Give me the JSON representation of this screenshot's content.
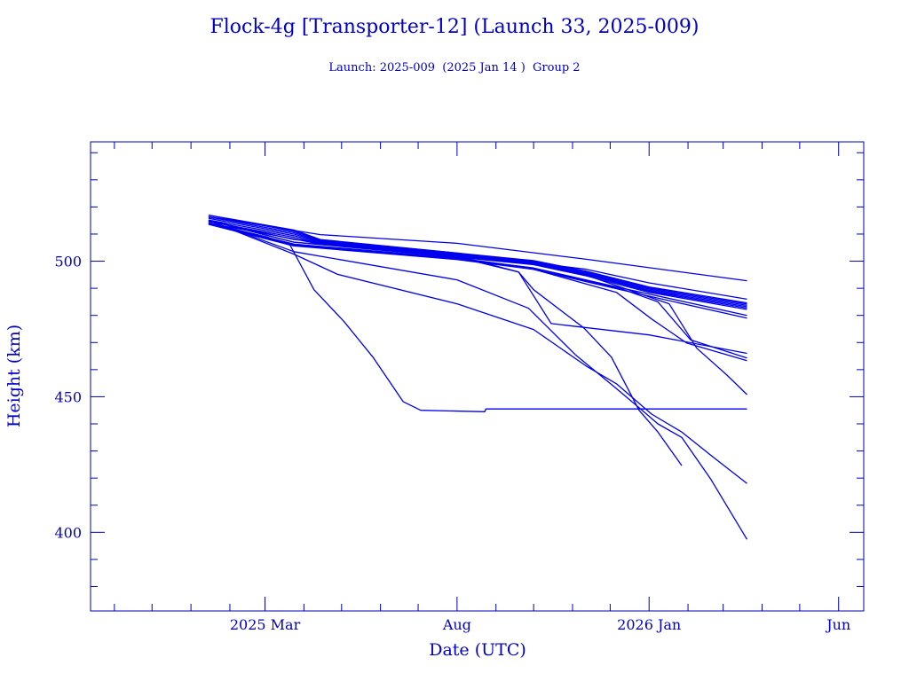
{
  "chart_data": {
    "type": "line",
    "title": "Flock-4g [Transporter-12] (Launch 33, 2025-009)",
    "subtitle": "Launch: 2025-009  (2025 Jan 14 )  Group 2",
    "xlabel": "Date (UTC)",
    "ylabel": "Height (km)",
    "xlim": [
      "2024-10-13",
      "2026-06-21"
    ],
    "ylim": [
      371,
      544
    ],
    "x_ticks": [
      {
        "date": "2025-03-01",
        "label": "2025 Mar"
      },
      {
        "date": "2025-08-01",
        "label": "Aug"
      },
      {
        "date": "2026-01-01",
        "label": "2026 Jan"
      },
      {
        "date": "2026-06-01",
        "label": "Jun"
      }
    ],
    "x_minor_ticks": "monthly",
    "y_ticks": [
      {
        "value": 400,
        "label": "400"
      },
      {
        "value": 450,
        "label": "450"
      },
      {
        "value": 500,
        "label": "500"
      }
    ],
    "y_minor_step": 10,
    "grid": false,
    "line_color": "#0000ee",
    "text_color": "#0000c8",
    "series": [
      {
        "points": [
          [
            "2025-01-15",
            516.4
          ],
          [
            "2025-04-14",
            509.8
          ],
          [
            "2025-08-01",
            506.6
          ],
          [
            "2025-11-12",
            500.7
          ],
          [
            "2026-03-20",
            492.8
          ]
        ]
      },
      {
        "points": [
          [
            "2025-01-15",
            517
          ],
          [
            "2025-03-24",
            511.5
          ],
          [
            "2025-04-14",
            508
          ],
          [
            "2025-08-01",
            503
          ],
          [
            "2025-11-12",
            497
          ],
          [
            "2026-01-01",
            492
          ],
          [
            "2026-03-20",
            486
          ]
        ]
      },
      {
        "points": [
          [
            "2025-01-15",
            517
          ],
          [
            "2025-03-24",
            511
          ],
          [
            "2025-04-14",
            507.8
          ],
          [
            "2025-08-01",
            503
          ],
          [
            "2025-10-01",
            500.2
          ],
          [
            "2025-11-12",
            496.3
          ],
          [
            "2026-01-01",
            490.5
          ],
          [
            "2026-03-20",
            484.6
          ]
        ]
      },
      {
        "points": [
          [
            "2025-01-15",
            516.3
          ],
          [
            "2025-03-24",
            510.5
          ],
          [
            "2025-04-14",
            507.5
          ],
          [
            "2025-08-01",
            502.7
          ],
          [
            "2025-10-01",
            499.9
          ],
          [
            "2025-11-12",
            496
          ],
          [
            "2026-01-01",
            490.1
          ],
          [
            "2026-03-20",
            484.2
          ]
        ]
      },
      {
        "points": [
          [
            "2025-01-15",
            515.8
          ],
          [
            "2025-03-24",
            510
          ],
          [
            "2025-04-14",
            507.2
          ],
          [
            "2025-08-01",
            502.4
          ],
          [
            "2025-10-01",
            499.6
          ],
          [
            "2025-11-12",
            495.6
          ],
          [
            "2026-01-01",
            489.7
          ],
          [
            "2026-03-20",
            483.7
          ]
        ]
      },
      {
        "points": [
          [
            "2025-01-15",
            515.2
          ],
          [
            "2025-03-24",
            509.4
          ],
          [
            "2025-04-14",
            506.9
          ],
          [
            "2025-08-01",
            502.1
          ],
          [
            "2025-10-01",
            499.3
          ],
          [
            "2025-11-12",
            495.3
          ],
          [
            "2026-01-01",
            489.3
          ],
          [
            "2026-03-20",
            483.2
          ]
        ]
      },
      {
        "points": [
          [
            "2025-01-15",
            514.6
          ],
          [
            "2025-03-24",
            508.8
          ],
          [
            "2025-04-14",
            506.6
          ],
          [
            "2025-08-01",
            501.8
          ],
          [
            "2025-10-01",
            499
          ],
          [
            "2025-11-12",
            495
          ],
          [
            "2026-01-01",
            488.9
          ],
          [
            "2026-03-20",
            482.7
          ]
        ]
      },
      {
        "points": [
          [
            "2025-01-15",
            514
          ],
          [
            "2025-03-24",
            508.2
          ],
          [
            "2025-04-14",
            506.3
          ],
          [
            "2025-08-01",
            501.5
          ],
          [
            "2025-10-01",
            498.7
          ],
          [
            "2025-11-12",
            494.6
          ],
          [
            "2026-01-01",
            488.5
          ],
          [
            "2026-03-20",
            482.2
          ]
        ]
      },
      {
        "points": [
          [
            "2025-01-15",
            514
          ],
          [
            "2025-03-24",
            506
          ],
          [
            "2025-08-01",
            501
          ],
          [
            "2025-10-01",
            497.5
          ],
          [
            "2025-12-11",
            490
          ],
          [
            "2026-03-20",
            480
          ]
        ]
      },
      {
        "points": [
          [
            "2025-01-15",
            513.6
          ],
          [
            "2025-03-24",
            505.6
          ],
          [
            "2025-08-01",
            500.6
          ],
          [
            "2025-10-01",
            497
          ],
          [
            "2025-12-11",
            489.3
          ],
          [
            "2026-03-20",
            479
          ]
        ]
      },
      {
        "points": [
          [
            "2025-01-15",
            515
          ],
          [
            "2025-03-24",
            507
          ],
          [
            "2025-08-01",
            502
          ],
          [
            "2025-09-19",
            496
          ],
          [
            "2025-10-15",
            477
          ],
          [
            "2026-01-01",
            472.8
          ],
          [
            "2026-03-20",
            466
          ]
        ]
      },
      {
        "points": [
          [
            "2025-01-15",
            514
          ],
          [
            "2025-03-24",
            506
          ],
          [
            "2025-08-01",
            501
          ],
          [
            "2025-10-01",
            497
          ],
          [
            "2025-12-06",
            488.5
          ],
          [
            "2026-01-03",
            478.7
          ],
          [
            "2026-01-31",
            469.8
          ],
          [
            "2026-03-20",
            463.3
          ]
        ]
      },
      {
        "points": [
          [
            "2025-01-15",
            514.2
          ],
          [
            "2025-03-24",
            506.3
          ],
          [
            "2025-08-01",
            501.2
          ],
          [
            "2025-10-01",
            497.4
          ],
          [
            "2025-12-11",
            489.6
          ],
          [
            "2026-01-08",
            485
          ],
          [
            "2026-02-03",
            471
          ],
          [
            "2026-03-20",
            464.3
          ]
        ]
      },
      {
        "points": [
          [
            "2025-01-15",
            515
          ],
          [
            "2025-03-24",
            508
          ],
          [
            "2025-08-01",
            502.2
          ],
          [
            "2025-10-01",
            499.2
          ],
          [
            "2025-11-12",
            494.8
          ],
          [
            "2026-01-17",
            484.3
          ],
          [
            "2026-02-08",
            467.9
          ],
          [
            "2026-03-04",
            458
          ],
          [
            "2026-03-20",
            450.8
          ]
        ]
      },
      {
        "points": [
          [
            "2025-01-15",
            515
          ],
          [
            "2025-03-24",
            502.6
          ],
          [
            "2025-04-28",
            495.1
          ],
          [
            "2025-08-01",
            484.3
          ],
          [
            "2025-10-01",
            474.8
          ],
          [
            "2025-11-12",
            461.3
          ],
          [
            "2025-12-06",
            454.8
          ],
          [
            "2026-01-03",
            443.6
          ],
          [
            "2026-01-27",
            437
          ],
          [
            "2026-02-19",
            428.5
          ],
          [
            "2026-03-20",
            418
          ]
        ]
      },
      {
        "points": [
          [
            "2025-01-15",
            515
          ],
          [
            "2025-03-24",
            503.5
          ],
          [
            "2025-08-01",
            493.1
          ],
          [
            "2025-09-27",
            482.6
          ],
          [
            "2025-11-03",
            465.6
          ],
          [
            "2025-12-06",
            453
          ],
          [
            "2025-12-24",
            446
          ],
          [
            "2026-01-08",
            440
          ],
          [
            "2026-01-27",
            435
          ],
          [
            "2026-02-19",
            419.7
          ],
          [
            "2026-03-20",
            397.4
          ]
        ]
      },
      {
        "points": [
          [
            "2025-01-15",
            515
          ],
          [
            "2025-03-24",
            507
          ],
          [
            "2025-08-01",
            501.5
          ],
          [
            "2025-09-19",
            496
          ],
          [
            "2025-10-01",
            489.5
          ],
          [
            "2025-11-10",
            475.4
          ],
          [
            "2025-12-02",
            464.6
          ],
          [
            "2025-12-24",
            445
          ],
          [
            "2026-01-08",
            437
          ],
          [
            "2026-01-27",
            424.6
          ]
        ]
      },
      {
        "points": [
          [
            "2025-01-15",
            514
          ],
          [
            "2025-03-02",
            509
          ],
          [
            "2025-03-21",
            505.9
          ],
          [
            "2025-04-09",
            489.5
          ],
          [
            "2025-05-03",
            477.7
          ],
          [
            "2025-05-26",
            464.6
          ],
          [
            "2025-06-19",
            448.2
          ],
          [
            "2025-07-03",
            445
          ],
          [
            "2025-08-23",
            444.5
          ],
          [
            "2025-08-24",
            445.5
          ],
          [
            "2026-03-20",
            445.5
          ]
        ]
      }
    ]
  }
}
